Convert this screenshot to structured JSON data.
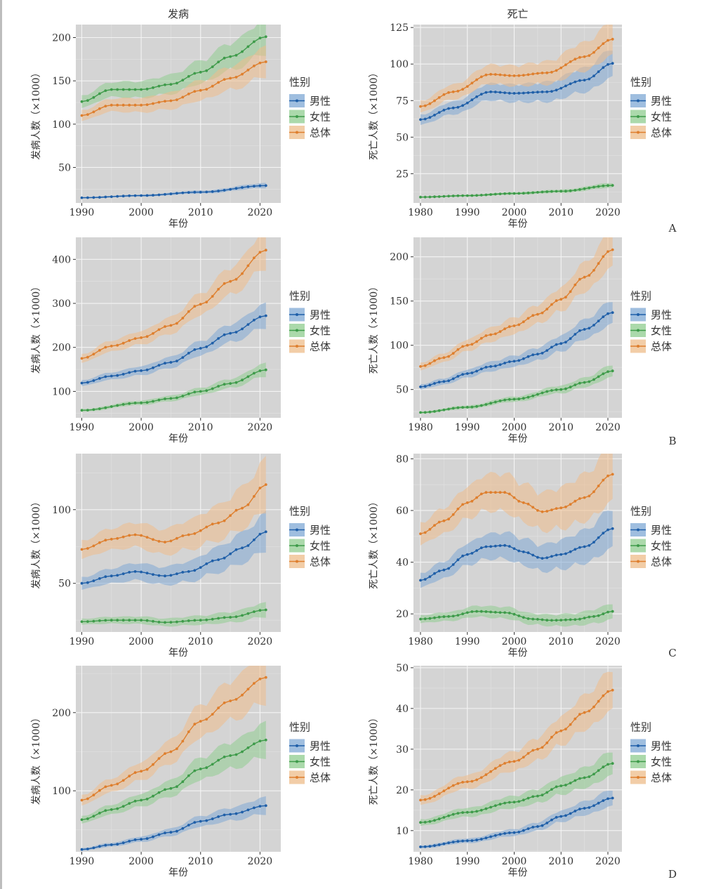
{
  "column_titles": [
    "发病",
    "死亡"
  ],
  "legend": {
    "title": "性别",
    "items": [
      {
        "label": "男性",
        "color": "#1f5fa8",
        "fill": "#7fa8d4"
      },
      {
        "label": "女性",
        "color": "#3e9b4a",
        "fill": "#8fcc8f"
      },
      {
        "label": "总体",
        "color": "#de7f2e",
        "fill": "#eebc8a"
      }
    ]
  },
  "panel_labels": [
    "A",
    "B",
    "C",
    "D"
  ],
  "chart_data": [
    {
      "type": "line",
      "row": "A",
      "column": "发病",
      "xlabel": "年份",
      "ylabel": "发病人数（×1000）",
      "xlim": [
        1989,
        2023.5
      ],
      "xticks": [
        1990,
        2000,
        2010,
        2020
      ],
      "ylim": [
        9,
        215
      ],
      "yticks": [
        50,
        100,
        150,
        200
      ],
      "x_start": 1990,
      "x_end": 2021,
      "band": 0.06,
      "series": [
        {
          "name": "男性",
          "anchors": [
            [
              1990,
              15
            ],
            [
              2000,
              17.5
            ],
            [
              2010,
              21.5
            ],
            [
              2021,
              29
            ]
          ]
        },
        {
          "name": "女性",
          "anchors": [
            [
              1990,
              126
            ],
            [
              1995,
              140
            ],
            [
              2000,
              140
            ],
            [
              2005,
              146
            ],
            [
              2010,
              160
            ],
            [
              2015,
              178
            ],
            [
              2021,
              201
            ]
          ]
        },
        {
          "name": "总体",
          "anchors": [
            [
              1990,
              110
            ],
            [
              1995,
              122
            ],
            [
              2000,
              122
            ],
            [
              2005,
              127
            ],
            [
              2010,
              139
            ],
            [
              2015,
              153
            ],
            [
              2021,
              172
            ]
          ]
        }
      ]
    },
    {
      "type": "line",
      "row": "A",
      "column": "死亡",
      "xlabel": "年份",
      "ylabel": "死亡人数（×1000）",
      "xlim": [
        1978.5,
        2023
      ],
      "xticks": [
        1980,
        1990,
        2000,
        2010,
        2020
      ],
      "ylim": [
        5,
        127
      ],
      "yticks": [
        25,
        50,
        75,
        100,
        125
      ],
      "x_start": 1980,
      "x_end": 2021,
      "band": 0.06,
      "series": [
        {
          "name": "男性",
          "anchors": [
            [
              1980,
              62
            ],
            [
              1987,
              70
            ],
            [
              1995,
              81
            ],
            [
              2000,
              80
            ],
            [
              2007,
              81
            ],
            [
              2015,
              89
            ],
            [
              2021,
              100.5
            ]
          ]
        },
        {
          "name": "女性",
          "anchors": [
            [
              1980,
              9
            ],
            [
              1990,
              10
            ],
            [
              2000,
              11.5
            ],
            [
              2010,
              13
            ],
            [
              2021,
              17
            ]
          ]
        },
        {
          "name": "总体",
          "anchors": [
            [
              1980,
              71
            ],
            [
              1987,
              81
            ],
            [
              1995,
              93
            ],
            [
              2000,
              92
            ],
            [
              2007,
              94
            ],
            [
              2015,
              105
            ],
            [
              2021,
              117
            ]
          ]
        }
      ]
    },
    {
      "type": "line",
      "row": "B",
      "column": "发病",
      "xlabel": "年份",
      "ylabel": "发病人数（×1000）",
      "xlim": [
        1989,
        2023.5
      ],
      "xticks": [
        1990,
        2000,
        2010,
        2020
      ],
      "ylim": [
        40,
        450
      ],
      "yticks": [
        100,
        200,
        300,
        400
      ],
      "x_start": 1990,
      "x_end": 2021,
      "band": 0.06,
      "series": [
        {
          "name": "男性",
          "anchors": [
            [
              1990,
              119
            ],
            [
              1995,
              135
            ],
            [
              2000,
              147
            ],
            [
              2005,
              166
            ],
            [
              2010,
              198
            ],
            [
              2015,
              232
            ],
            [
              2021,
              272
            ]
          ]
        },
        {
          "name": "女性",
          "anchors": [
            [
              1990,
              57
            ],
            [
              2000,
              74
            ],
            [
              2005,
              84
            ],
            [
              2010,
              100
            ],
            [
              2015,
              118
            ],
            [
              2021,
              149
            ]
          ]
        },
        {
          "name": "总体",
          "anchors": [
            [
              1990,
              175
            ],
            [
              1995,
              203
            ],
            [
              2000,
              222
            ],
            [
              2005,
              250
            ],
            [
              2010,
              298
            ],
            [
              2015,
              350
            ],
            [
              2021,
              421
            ]
          ]
        }
      ]
    },
    {
      "type": "line",
      "row": "B",
      "column": "死亡",
      "xlabel": "年份",
      "ylabel": "死亡人数（×1000）",
      "xlim": [
        1978.5,
        2023
      ],
      "xticks": [
        1980,
        1990,
        2000,
        2010,
        2020
      ],
      "ylim": [
        18,
        222
      ],
      "yticks": [
        50,
        100,
        150,
        200
      ],
      "x_start": 1980,
      "x_end": 2021,
      "band": 0.06,
      "series": [
        {
          "name": "男性",
          "anchors": [
            [
              1980,
              53
            ],
            [
              1985,
              59
            ],
            [
              1990,
              68
            ],
            [
              1995,
              76
            ],
            [
              2000,
              82
            ],
            [
              2005,
              90
            ],
            [
              2010,
              102
            ],
            [
              2015,
              118
            ],
            [
              2021,
              137
            ]
          ]
        },
        {
          "name": "女性",
          "anchors": [
            [
              1980,
              24
            ],
            [
              1990,
              30
            ],
            [
              2000,
              39
            ],
            [
              2010,
              50
            ],
            [
              2015,
              58
            ],
            [
              2021,
              71
            ]
          ]
        },
        {
          "name": "总体",
          "anchors": [
            [
              1980,
              76
            ],
            [
              1985,
              86
            ],
            [
              1990,
              100
            ],
            [
              1995,
              112
            ],
            [
              2000,
              122
            ],
            [
              2005,
              135
            ],
            [
              2010,
              152
            ],
            [
              2015,
              177
            ],
            [
              2021,
              208
            ]
          ]
        }
      ]
    },
    {
      "type": "line",
      "row": "C",
      "column": "发病",
      "xlabel": "年份",
      "ylabel": "发病人数（×1000）",
      "xlim": [
        1989,
        2023.5
      ],
      "xticks": [
        1990,
        2000,
        2010,
        2020
      ],
      "ylim": [
        17,
        138
      ],
      "yticks": [
        50,
        100
      ],
      "x_start": 1990,
      "x_end": 2021,
      "band": 0.09,
      "series": [
        {
          "name": "男性",
          "anchors": [
            [
              1990,
              50
            ],
            [
              1995,
              55
            ],
            [
              1999,
              58
            ],
            [
              2004,
              55
            ],
            [
              2008,
              58
            ],
            [
              2013,
              66
            ],
            [
              2017,
              74
            ],
            [
              2021,
              85
            ]
          ]
        },
        {
          "name": "女性",
          "anchors": [
            [
              1990,
              24
            ],
            [
              1995,
              25
            ],
            [
              2000,
              25
            ],
            [
              2004,
              23.5
            ],
            [
              2010,
              25
            ],
            [
              2015,
              27
            ],
            [
              2021,
              32
            ]
          ]
        },
        {
          "name": "总体",
          "anchors": [
            [
              1990,
              73
            ],
            [
              1995,
              80
            ],
            [
              1999,
              83
            ],
            [
              2004,
              78
            ],
            [
              2008,
              83
            ],
            [
              2013,
              91
            ],
            [
              2017,
              101
            ],
            [
              2021,
              117
            ]
          ]
        }
      ]
    },
    {
      "type": "line",
      "row": "C",
      "column": "死亡",
      "xlabel": "年份",
      "ylabel": "死亡人数（×1000）",
      "xlim": [
        1978.5,
        2023
      ],
      "xticks": [
        1980,
        1990,
        2000,
        2010,
        2020
      ],
      "ylim": [
        13,
        82
      ],
      "yticks": [
        20,
        40,
        60,
        80
      ],
      "x_start": 1980,
      "x_end": 2021,
      "band": 0.09,
      "series": [
        {
          "name": "男性",
          "anchors": [
            [
              1980,
              33
            ],
            [
              1985,
              37
            ],
            [
              1990,
              43
            ],
            [
              1994,
              46
            ],
            [
              1998,
              46.5
            ],
            [
              2002,
              44
            ],
            [
              2006,
              41.5
            ],
            [
              2010,
              43
            ],
            [
              2015,
              46
            ],
            [
              2021,
              53
            ]
          ]
        },
        {
          "name": "女性",
          "anchors": [
            [
              1980,
              18
            ],
            [
              1986,
              19
            ],
            [
              1992,
              21
            ],
            [
              1998,
              20.5
            ],
            [
              2004,
              18
            ],
            [
              2008,
              17.5
            ],
            [
              2013,
              17.8
            ],
            [
              2017,
              19
            ],
            [
              2021,
              21
            ]
          ]
        },
        {
          "name": "总体",
          "anchors": [
            [
              1980,
              51
            ],
            [
              1985,
              56
            ],
            [
              1990,
              63
            ],
            [
              1994,
              67
            ],
            [
              1998,
              67
            ],
            [
              2002,
              63
            ],
            [
              2006,
              59.5
            ],
            [
              2010,
              61
            ],
            [
              2015,
              65
            ],
            [
              2021,
              74
            ]
          ]
        }
      ]
    },
    {
      "type": "line",
      "row": "D",
      "column": "发病",
      "xlabel": "年份",
      "ylabel": "发病人数（×1000）",
      "xlim": [
        1989,
        2023.5
      ],
      "xticks": [
        1990,
        2000,
        2010,
        2020
      ],
      "ylim": [
        22,
        260
      ],
      "yticks": [
        100,
        200
      ],
      "x_start": 1990,
      "x_end": 2021,
      "band": 0.08,
      "series": [
        {
          "name": "男性",
          "anchors": [
            [
              1990,
              25
            ],
            [
              1995,
              31
            ],
            [
              2000,
              38
            ],
            [
              2005,
              47
            ],
            [
              2010,
              61
            ],
            [
              2015,
              70
            ],
            [
              2021,
              81
            ]
          ]
        },
        {
          "name": "女性",
          "anchors": [
            [
              1990,
              63
            ],
            [
              1995,
              76
            ],
            [
              2000,
              88
            ],
            [
              2005,
              103
            ],
            [
              2010,
              128
            ],
            [
              2015,
              145
            ],
            [
              2021,
              165
            ]
          ]
        },
        {
          "name": "总体",
          "anchors": [
            [
              1990,
              88
            ],
            [
              1995,
              107
            ],
            [
              2000,
              125
            ],
            [
              2005,
              150
            ],
            [
              2010,
              189
            ],
            [
              2015,
              215
            ],
            [
              2021,
              245
            ]
          ]
        }
      ]
    },
    {
      "type": "line",
      "row": "D",
      "column": "死亡",
      "xlabel": "年份",
      "ylabel": "死亡人数（×1000）",
      "xlim": [
        1978.5,
        2023
      ],
      "xticks": [
        1980,
        1990,
        2000,
        2010,
        2020
      ],
      "ylim": [
        4.8,
        50.5
      ],
      "yticks": [
        10,
        20,
        30,
        40,
        50
      ],
      "x_start": 1980,
      "x_end": 2021,
      "band": 0.07,
      "series": [
        {
          "name": "男性",
          "anchors": [
            [
              1980,
              6
            ],
            [
              1990,
              7.5
            ],
            [
              2000,
              9.5
            ],
            [
              2005,
              11
            ],
            [
              2010,
              13.5
            ],
            [
              2015,
              15.5
            ],
            [
              2021,
              18
            ]
          ]
        },
        {
          "name": "女性",
          "anchors": [
            [
              1980,
              12
            ],
            [
              1990,
              14.5
            ],
            [
              2000,
              17
            ],
            [
              2005,
              18.5
            ],
            [
              2010,
              21
            ],
            [
              2015,
              23
            ],
            [
              2021,
              26.5
            ]
          ]
        },
        {
          "name": "总体",
          "anchors": [
            [
              1980,
              17.5
            ],
            [
              1990,
              22
            ],
            [
              2000,
              27
            ],
            [
              2005,
              30
            ],
            [
              2010,
              34.5
            ],
            [
              2015,
              39
            ],
            [
              2021,
              44.5
            ]
          ]
        }
      ]
    }
  ]
}
